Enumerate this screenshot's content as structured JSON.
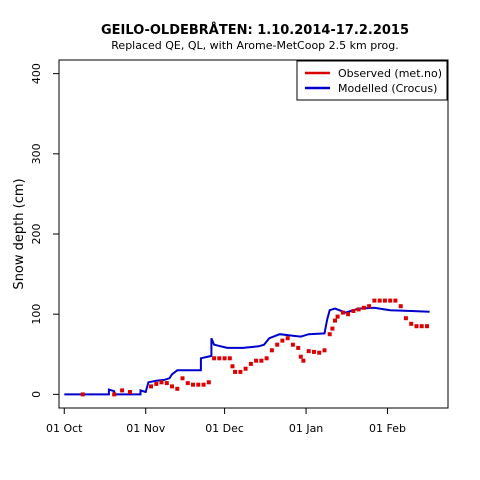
{
  "chart_data": {
    "type": "line",
    "title": "GEILO-OLDEBRÅTEN: 1.10.2014-17.2.2015",
    "subtitle": "Replaced QE, QL,  with Arome-MetCoop 2.5 km prog.",
    "xlabel": "",
    "ylabel": "Snow depth (cm)",
    "xlim": [
      "2014-09-29",
      "2015-02-24"
    ],
    "ylim": [
      -17,
      417
    ],
    "x_ticks": [
      {
        "date": "2014-10-01",
        "label": "01 Oct"
      },
      {
        "date": "2014-11-01",
        "label": "01 Nov"
      },
      {
        "date": "2014-12-01",
        "label": "01 Dec"
      },
      {
        "date": "2015-01-01",
        "label": "01 Jan"
      },
      {
        "date": "2015-02-01",
        "label": "01 Feb"
      }
    ],
    "y_ticks": [
      0,
      100,
      200,
      300,
      400
    ],
    "grid": false,
    "legend_position": "top-right",
    "series": [
      {
        "name": "Observed (met.no)",
        "style": "points",
        "color": "#dd0000",
        "points": [
          [
            "2014-10-08",
            0
          ],
          [
            "2014-10-20",
            0
          ],
          [
            "2014-10-23",
            5
          ],
          [
            "2014-10-26",
            3
          ],
          [
            "2014-11-03",
            10
          ],
          [
            "2014-11-05",
            13
          ],
          [
            "2014-11-07",
            15
          ],
          [
            "2014-11-09",
            14
          ],
          [
            "2014-11-11",
            10
          ],
          [
            "2014-11-13",
            7
          ],
          [
            "2014-11-15",
            20
          ],
          [
            "2014-11-17",
            14
          ],
          [
            "2014-11-19",
            12
          ],
          [
            "2014-11-21",
            12
          ],
          [
            "2014-11-23",
            12
          ],
          [
            "2014-11-25",
            15
          ],
          [
            "2014-11-27",
            45
          ],
          [
            "2014-11-29",
            45
          ],
          [
            "2014-12-01",
            45
          ],
          [
            "2014-12-03",
            45
          ],
          [
            "2014-12-04",
            35
          ],
          [
            "2014-12-05",
            28
          ],
          [
            "2014-12-07",
            28
          ],
          [
            "2014-12-09",
            32
          ],
          [
            "2014-12-11",
            38
          ],
          [
            "2014-12-13",
            42
          ],
          [
            "2014-12-15",
            42
          ],
          [
            "2014-12-17",
            45
          ],
          [
            "2014-12-19",
            55
          ],
          [
            "2014-12-21",
            62
          ],
          [
            "2014-12-23",
            67
          ],
          [
            "2014-12-25",
            70
          ],
          [
            "2014-12-27",
            62
          ],
          [
            "2014-12-29",
            58
          ],
          [
            "2014-12-30",
            47
          ],
          [
            "2014-12-31",
            42
          ],
          [
            "2015-01-02",
            54
          ],
          [
            "2015-01-04",
            53
          ],
          [
            "2015-01-06",
            52
          ],
          [
            "2015-01-08",
            55
          ],
          [
            "2015-01-10",
            75
          ],
          [
            "2015-01-11",
            82
          ],
          [
            "2015-01-12",
            92
          ],
          [
            "2015-01-13",
            97
          ],
          [
            "2015-01-15",
            102
          ],
          [
            "2015-01-17",
            100
          ],
          [
            "2015-01-19",
            104
          ],
          [
            "2015-01-21",
            106
          ],
          [
            "2015-01-23",
            108
          ],
          [
            "2015-01-25",
            110
          ],
          [
            "2015-01-27",
            117
          ],
          [
            "2015-01-29",
            117
          ],
          [
            "2015-01-31",
            117
          ],
          [
            "2015-02-02",
            117
          ],
          [
            "2015-02-04",
            117
          ],
          [
            "2015-02-06",
            110
          ],
          [
            "2015-02-08",
            95
          ],
          [
            "2015-02-10",
            88
          ],
          [
            "2015-02-12",
            85
          ],
          [
            "2015-02-14",
            85
          ],
          [
            "2015-02-16",
            85
          ]
        ]
      },
      {
        "name": "Modelled (Crocus)",
        "style": "line",
        "color": "#0000cc",
        "points": [
          [
            "2014-10-01",
            0
          ],
          [
            "2014-10-18",
            0
          ],
          [
            "2014-10-18",
            6
          ],
          [
            "2014-10-20",
            4
          ],
          [
            "2014-10-20",
            0
          ],
          [
            "2014-10-30",
            0
          ],
          [
            "2014-10-30",
            5
          ],
          [
            "2014-11-01",
            3
          ],
          [
            "2014-11-02",
            15
          ],
          [
            "2014-11-05",
            17
          ],
          [
            "2014-11-08",
            18
          ],
          [
            "2014-11-10",
            20
          ],
          [
            "2014-11-11",
            25
          ],
          [
            "2014-11-13",
            30
          ],
          [
            "2014-11-20",
            30
          ],
          [
            "2014-11-22",
            30
          ],
          [
            "2014-11-22",
            45
          ],
          [
            "2014-11-26",
            48
          ],
          [
            "2014-11-26",
            70
          ],
          [
            "2014-11-27",
            62
          ],
          [
            "2014-12-02",
            58
          ],
          [
            "2014-12-08",
            58
          ],
          [
            "2014-12-14",
            60
          ],
          [
            "2014-12-16",
            62
          ],
          [
            "2014-12-18",
            70
          ],
          [
            "2014-12-22",
            75
          ],
          [
            "2014-12-27",
            73
          ],
          [
            "2014-12-30",
            72
          ],
          [
            "2015-01-02",
            75
          ],
          [
            "2015-01-08",
            76
          ],
          [
            "2015-01-09",
            93
          ],
          [
            "2015-01-10",
            105
          ],
          [
            "2015-01-12",
            107
          ],
          [
            "2015-01-16",
            102
          ],
          [
            "2015-01-21",
            107
          ],
          [
            "2015-01-27",
            108
          ],
          [
            "2015-02-02",
            105
          ],
          [
            "2015-02-10",
            104
          ],
          [
            "2015-02-17",
            103
          ]
        ]
      }
    ]
  }
}
